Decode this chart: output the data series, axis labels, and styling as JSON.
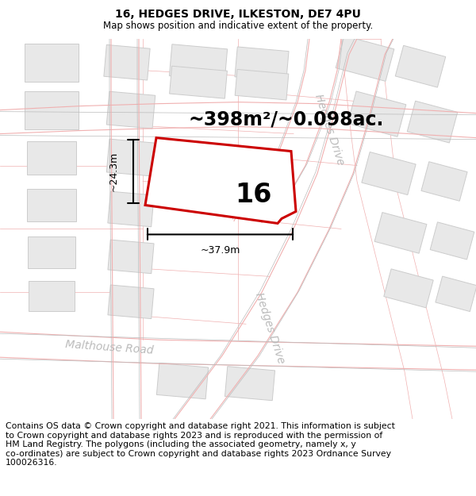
{
  "title": "16, HEDGES DRIVE, ILKESTON, DE7 4PU",
  "subtitle": "Map shows position and indicative extent of the property.",
  "area_label": "~398m²/~0.098ac.",
  "property_number": "16",
  "dim_width": "~37.9m",
  "dim_height": "~24.3m",
  "street_label_upper": "Hedges Drive",
  "street_label_lower": "Hedges Drive",
  "street_label_road": "Malthouse Road",
  "footer_text": "Contains OS data © Crown copyright and database right 2021. This information is subject\nto Crown copyright and database rights 2023 and is reproduced with the permission of\nHM Land Registry. The polygons (including the associated geometry, namely x, y\nco-ordinates) are subject to Crown copyright and database rights 2023 Ordnance Survey\n100026316.",
  "map_bg": "#ffffff",
  "block_fill": "#e8e8e8",
  "block_edge": "#cccccc",
  "road_outline_color": "#f0b0b0",
  "road_gray_color": "#bbbbbb",
  "property_fill": "#ffffff",
  "property_edge": "#cc0000",
  "dim_color": "#333333",
  "street_color": "#bbbbbb",
  "footer_fontsize": 7.8,
  "title_fontsize": 10,
  "subtitle_fontsize": 8.5,
  "area_fontsize": 17,
  "number_fontsize": 24,
  "dim_fontsize": 9,
  "street_fontsize": 10
}
